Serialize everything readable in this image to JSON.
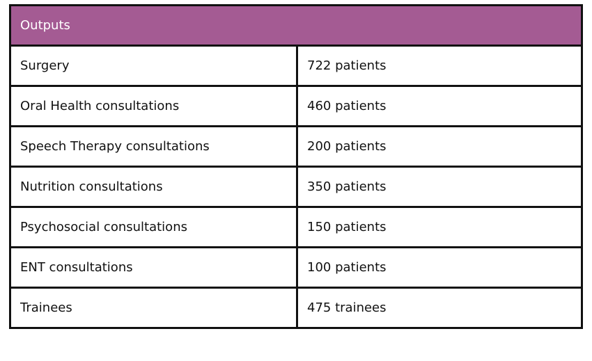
{
  "header": {
    "title": "Outputs",
    "background": "#a45b93"
  },
  "rows": [
    {
      "label": "Surgery",
      "value": "722 patients"
    },
    {
      "label": "Oral Health consultations",
      "value": "460 patients"
    },
    {
      "label": "Speech Therapy consultations",
      "value": "200 patients"
    },
    {
      "label": "Nutrition consultations",
      "value": "350 patients"
    },
    {
      "label": "Psychosocial consultations",
      "value": "150 patients"
    },
    {
      "label": "ENT consultations",
      "value": "100 patients"
    },
    {
      "label": "Trainees",
      "value": "475 trainees"
    }
  ]
}
